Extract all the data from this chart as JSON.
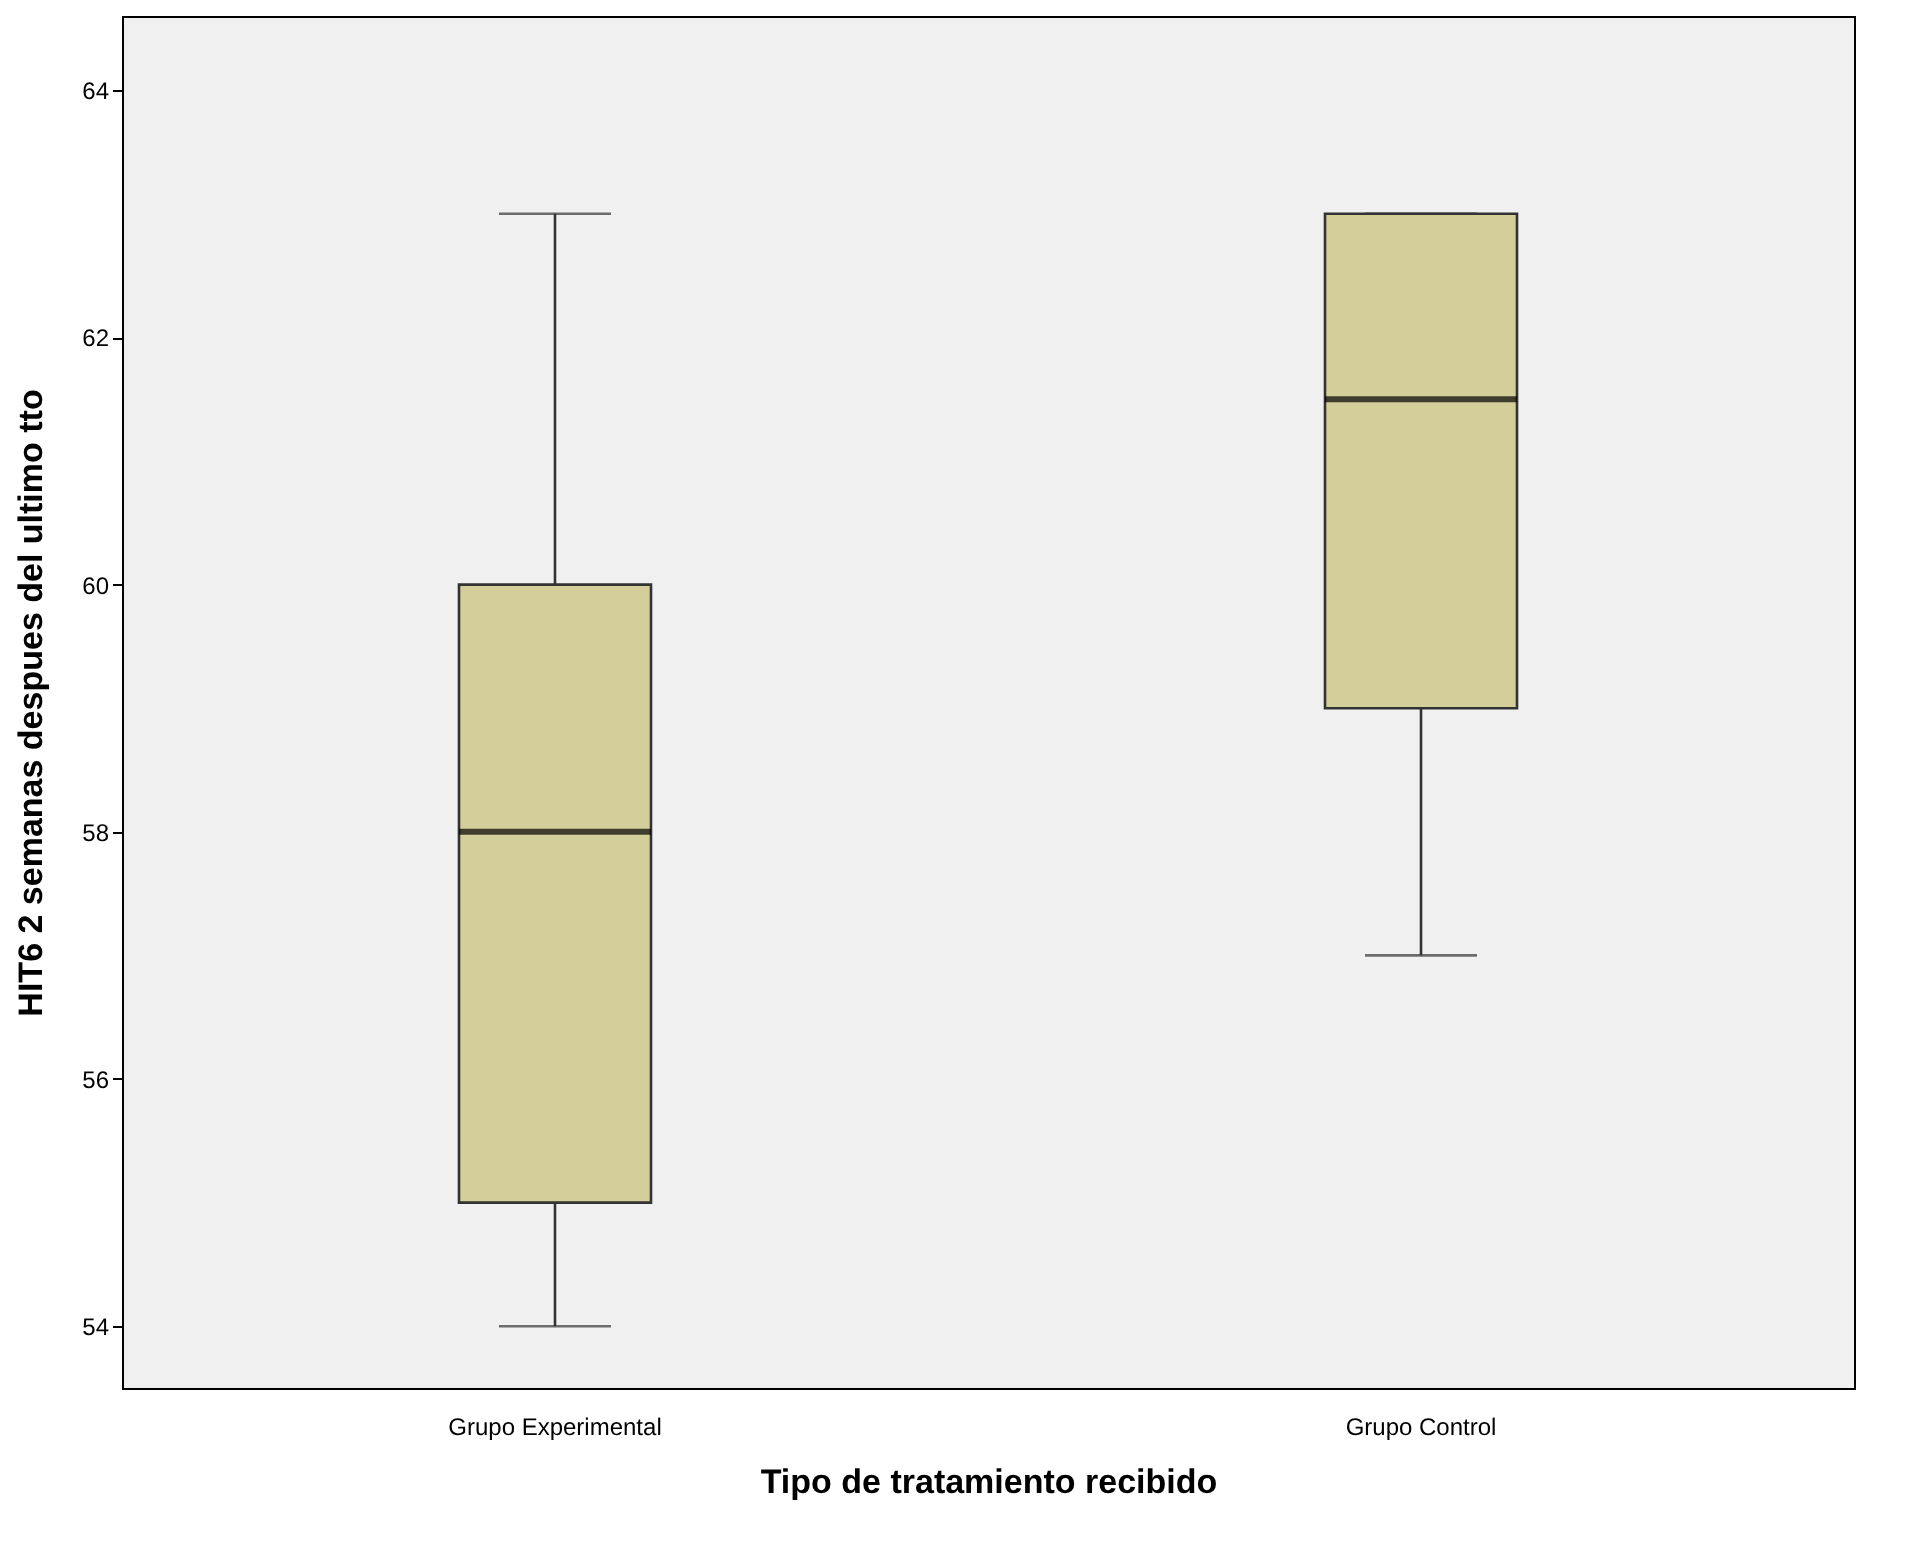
{
  "chart_data": {
    "type": "box",
    "xlabel": "Tipo de tratamiento recibido",
    "ylabel": "HIT6 2 semanas despues del ultimo tto",
    "categories": [
      "Grupo Experimental",
      "Grupo Control"
    ],
    "boxes": [
      {
        "low": 54,
        "q1": 55,
        "median": 58,
        "q3": 60,
        "high": 63
      },
      {
        "low": 57,
        "q1": 59,
        "median": 61.5,
        "q3": 63,
        "high": 63
      }
    ],
    "color": "#d3ce9a",
    "ylim": [
      53.5,
      64.6
    ],
    "yticks": [
      54,
      56,
      58,
      60,
      62,
      64
    ]
  }
}
